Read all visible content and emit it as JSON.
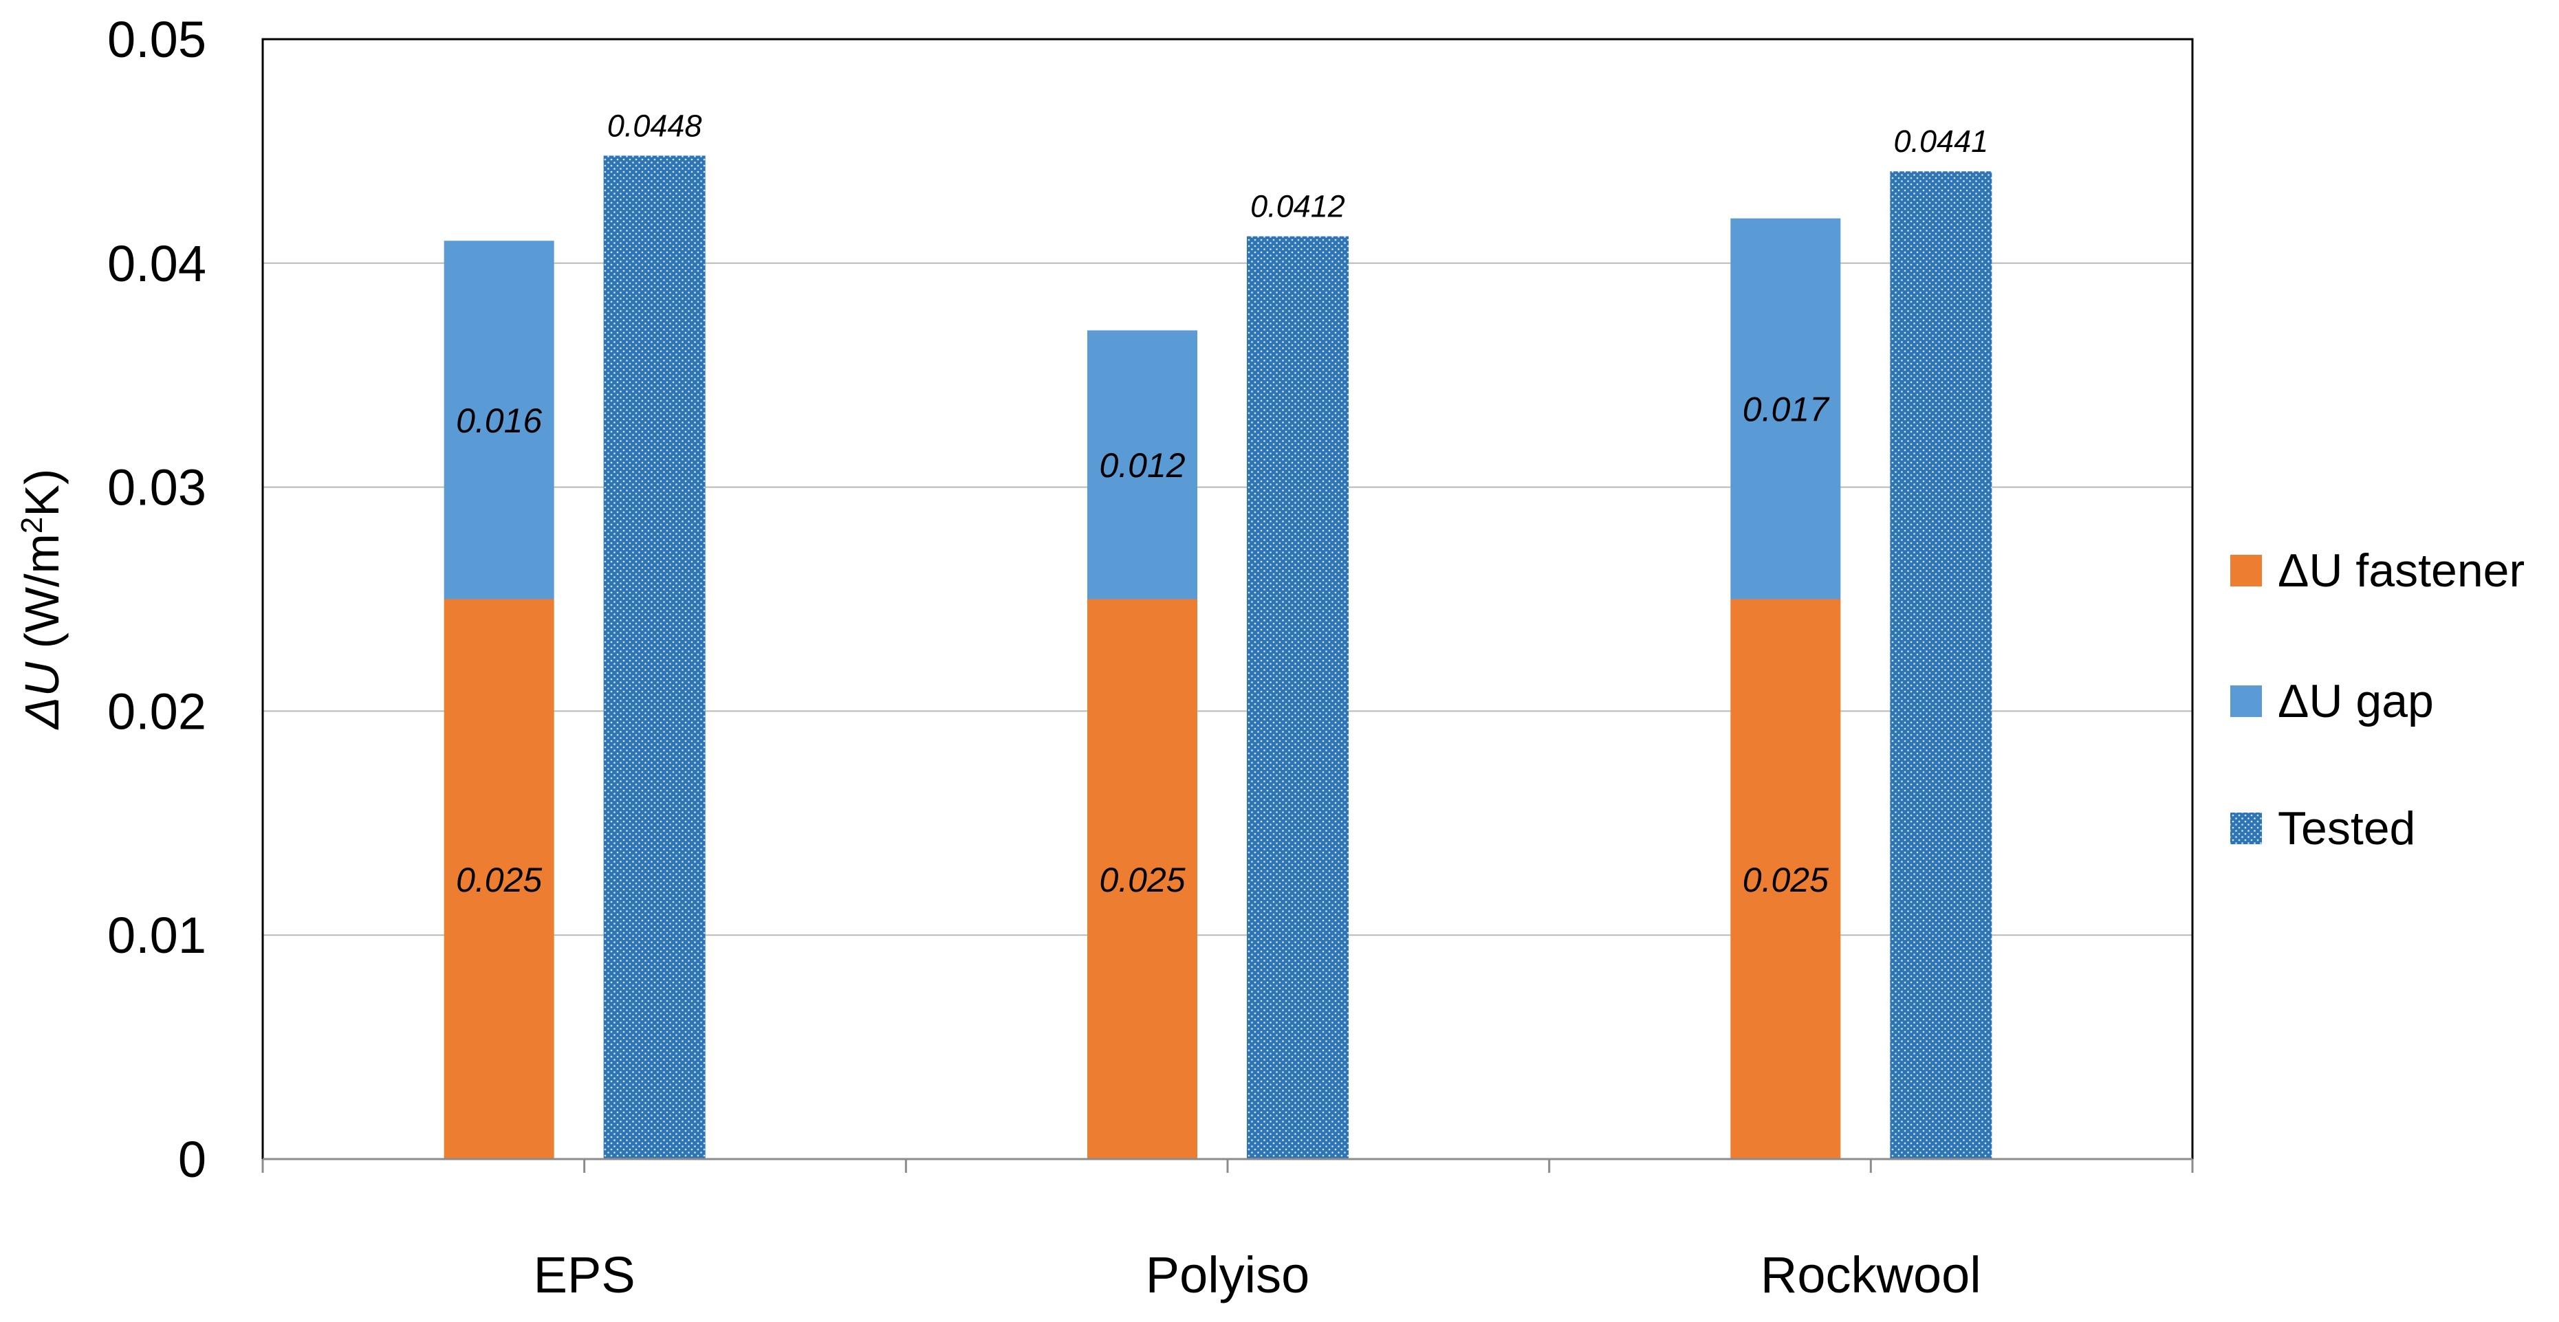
{
  "chart_data": {
    "type": "bar",
    "categories": [
      "EPS",
      "Polyiso",
      "Rockwool"
    ],
    "series": [
      {
        "name": "ΔU fastener",
        "values": [
          0.025,
          0.025,
          0.025
        ],
        "labels": [
          "0.025",
          "0.025",
          "0.025"
        ],
        "color": "#ED7D31",
        "stack": "components"
      },
      {
        "name": "ΔU gap",
        "values": [
          0.016,
          0.012,
          0.017
        ],
        "labels": [
          "0.016",
          "0.012",
          "0.017"
        ],
        "color": "#5B9BD5",
        "stack": "components"
      },
      {
        "name": "Tested",
        "values": [
          0.0448,
          0.0412,
          0.0441
        ],
        "labels": [
          "0.0448",
          "0.0412",
          "0.0441"
        ],
        "color": "#2E75B6",
        "pattern": "dotted",
        "stack": "tested"
      }
    ],
    "ylabel": "ΔU (W/m²K)",
    "ylabel_parts": {
      "symbol": "ΔU",
      "unit_prefix": " (W/m",
      "unit_sup": "2",
      "unit_suffix": "K)"
    },
    "ylim": [
      0,
      0.05
    ],
    "yticks": [
      "0",
      "0.01",
      "0.02",
      "0.03",
      "0.04",
      "0.05"
    ],
    "ytick_values": [
      0,
      0.01,
      0.02,
      0.03,
      0.04,
      0.05
    ],
    "grid": true,
    "legend_position": "right"
  }
}
